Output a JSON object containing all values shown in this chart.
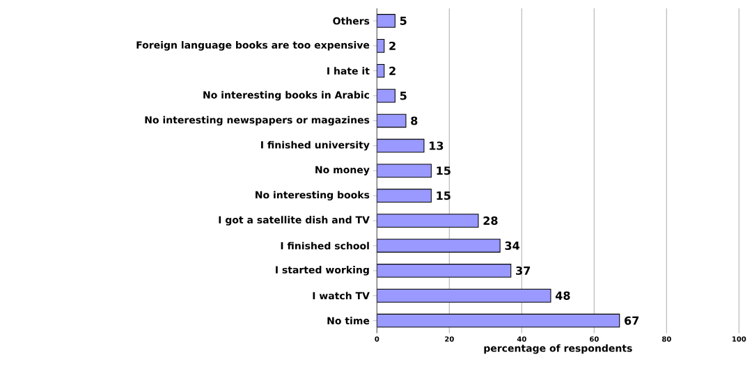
{
  "chart_data": {
    "type": "bar",
    "orientation": "horizontal",
    "categories": [
      "Others",
      "Foreign language books are too expensive",
      "I hate it",
      "No interesting books in Arabic",
      "No interesting newspapers or magazines",
      "I finished university",
      "No money",
      "No interesting books",
      "I got a satellite dish and TV",
      "I finished school",
      "I started working",
      "I watch TV",
      "No time"
    ],
    "values": [
      5,
      2,
      2,
      5,
      8,
      13,
      15,
      15,
      28,
      34,
      37,
      48,
      67
    ],
    "color": "#9999ff",
    "xlabel": "percentage of respondents",
    "xlim": [
      0,
      100
    ],
    "xticks": [
      0,
      20,
      40,
      60,
      80,
      100
    ],
    "grid": "x",
    "data_labels": true
  }
}
